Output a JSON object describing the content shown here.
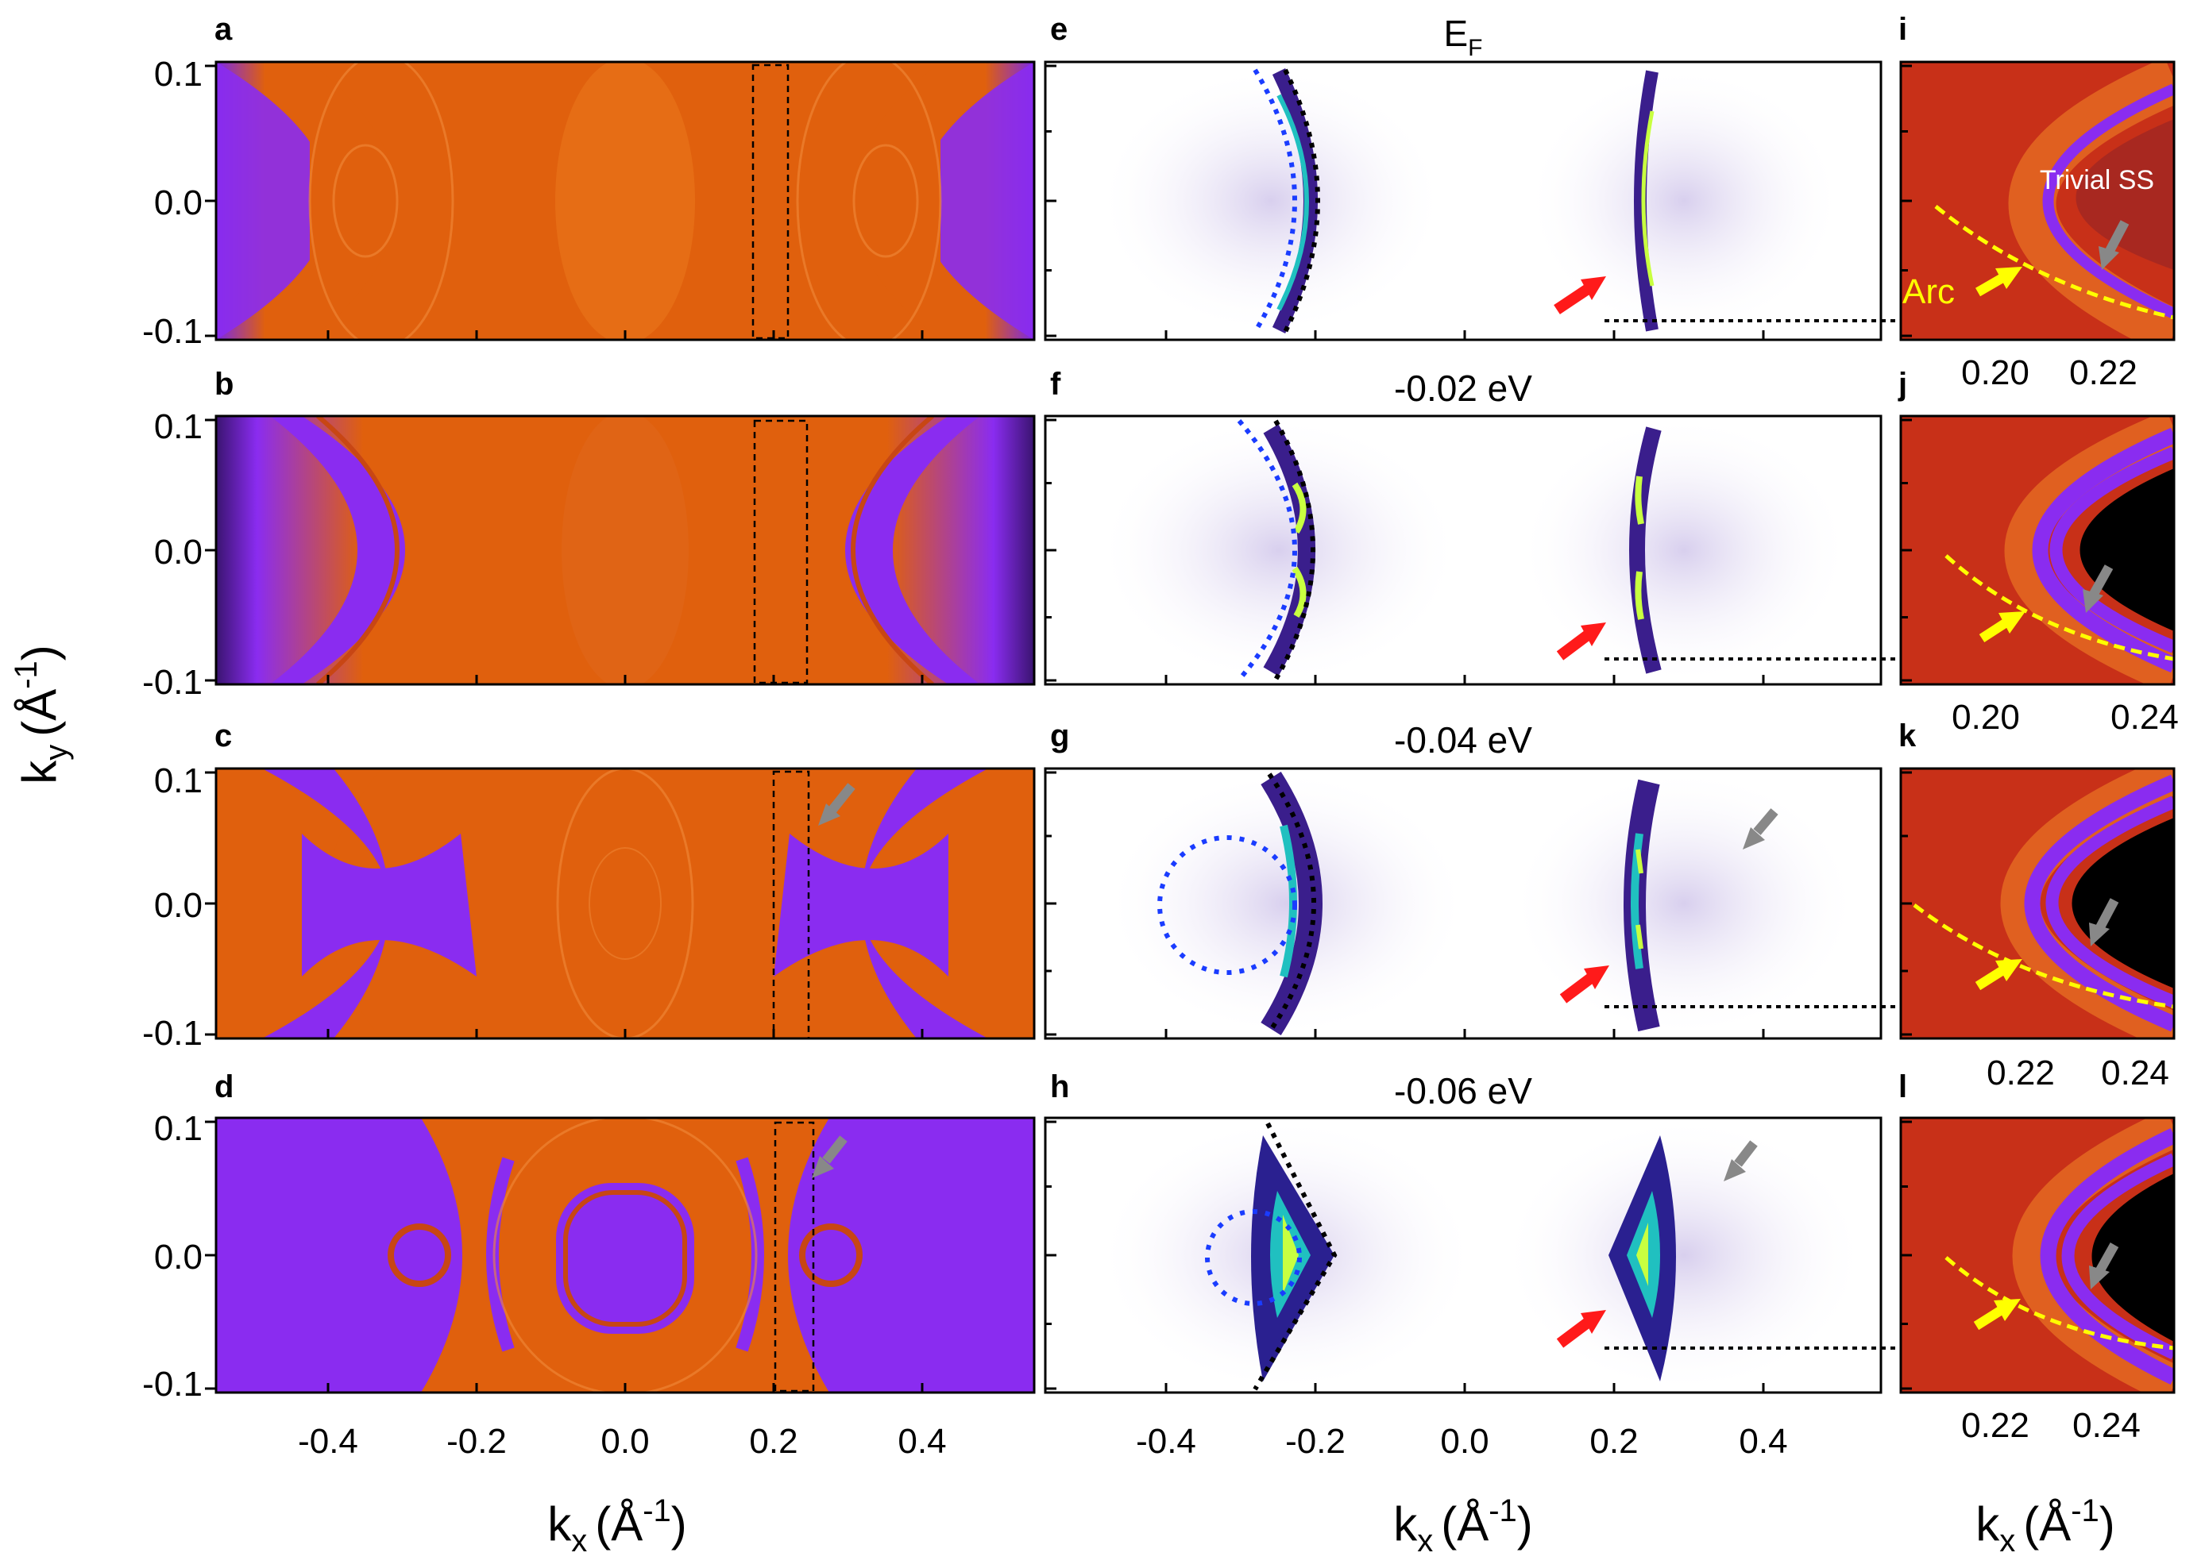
{
  "figure": {
    "panel_letters": [
      "a",
      "b",
      "c",
      "d",
      "e",
      "f",
      "g",
      "h",
      "i",
      "j",
      "k",
      "l"
    ],
    "energy_titles": [
      "E",
      "-0.02 eV",
      "-0.04 eV",
      "-0.06 eV"
    ],
    "energy_title_subscript": "F",
    "left_y_ticks": [
      "0.1",
      "0.0",
      "-0.1"
    ],
    "left_x_ticks": [
      "-0.4",
      "-0.2",
      "0.0",
      "0.2",
      "0.4"
    ],
    "middle_x_ticks": [
      "-0.4",
      "-0.2",
      "0.0",
      "0.2",
      "0.4"
    ],
    "right_x_ticks": [
      [
        "0.20",
        "0.22"
      ],
      [
        "0.20",
        "0.24"
      ],
      [
        "0.22",
        "0.24"
      ],
      [
        "0.22",
        "0.24"
      ]
    ],
    "y_axis_label": "k",
    "y_axis_label_sub": "y",
    "y_axis_units": "(Å",
    "y_axis_units_sup": "-1",
    "y_axis_units_close": ")",
    "x_axis_label": "k",
    "x_axis_label_sub": "x",
    "x_axis_units": "(Å",
    "x_axis_units_sup": "-1",
    "x_axis_units_close": ")",
    "annotation_trivial": "Trivial SS",
    "annotation_arc": "Arc"
  },
  "colors": {
    "orange": "#e0600d",
    "dark_orange": "#c84614",
    "purple": "#8a2cf0",
    "dark_red": "#a82820",
    "arpes_purple": "#3a1e8c",
    "cyan": "#20d0c0",
    "lime": "#c8ff40",
    "arrow_red": "#ff1a1a",
    "arrow_gray": "#888888",
    "arrow_yellow": "#ffff00",
    "dots_blue": "#1a3cff"
  },
  "chart_data": [
    {
      "type": "heatmap",
      "panel": "a",
      "title": "",
      "xlabel": "kx (Å-1)",
      "ylabel": "ky (Å-1)",
      "xlim": [
        -0.55,
        0.55
      ],
      "ylim": [
        -0.1,
        0.1
      ]
    },
    {
      "type": "heatmap",
      "panel": "b",
      "xlim": [
        -0.55,
        0.55
      ],
      "ylim": [
        -0.1,
        0.1
      ]
    },
    {
      "type": "heatmap",
      "panel": "c",
      "xlim": [
        -0.55,
        0.55
      ],
      "ylim": [
        -0.1,
        0.1
      ]
    },
    {
      "type": "heatmap",
      "panel": "d",
      "xlim": [
        -0.55,
        0.55
      ],
      "ylim": [
        -0.1,
        0.1
      ]
    },
    {
      "type": "heatmap",
      "panel": "e",
      "title": "EF",
      "xlim": [
        -0.55,
        0.55
      ],
      "ylim": [
        -0.1,
        0.1
      ]
    },
    {
      "type": "heatmap",
      "panel": "f",
      "title": "-0.02 eV",
      "xlim": [
        -0.55,
        0.55
      ],
      "ylim": [
        -0.1,
        0.1
      ]
    },
    {
      "type": "heatmap",
      "panel": "g",
      "title": "-0.04 eV",
      "xlim": [
        -0.55,
        0.55
      ],
      "ylim": [
        -0.1,
        0.1
      ]
    },
    {
      "type": "heatmap",
      "panel": "h",
      "title": "-0.06 eV",
      "xlim": [
        -0.55,
        0.55
      ],
      "ylim": [
        -0.1,
        0.1
      ]
    }
  ]
}
